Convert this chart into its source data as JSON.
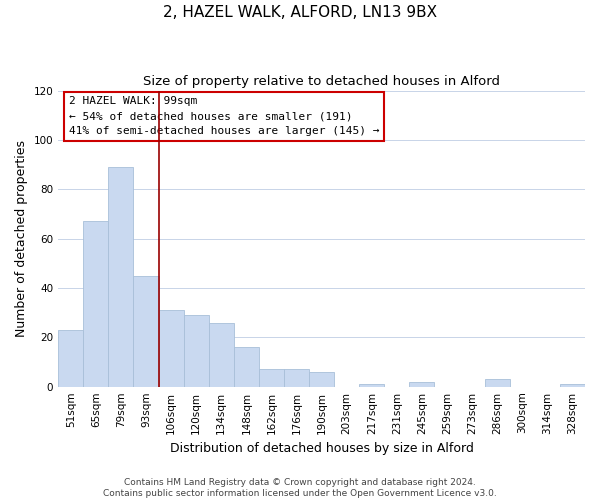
{
  "title": "2, HAZEL WALK, ALFORD, LN13 9BX",
  "subtitle": "Size of property relative to detached houses in Alford",
  "xlabel": "Distribution of detached houses by size in Alford",
  "ylabel": "Number of detached properties",
  "categories": [
    "51sqm",
    "65sqm",
    "79sqm",
    "93sqm",
    "106sqm",
    "120sqm",
    "134sqm",
    "148sqm",
    "162sqm",
    "176sqm",
    "190sqm",
    "203sqm",
    "217sqm",
    "231sqm",
    "245sqm",
    "259sqm",
    "273sqm",
    "286sqm",
    "300sqm",
    "314sqm",
    "328sqm"
  ],
  "values": [
    23,
    67,
    89,
    45,
    31,
    29,
    26,
    16,
    7,
    7,
    6,
    0,
    1,
    0,
    2,
    0,
    0,
    3,
    0,
    0,
    1
  ],
  "bar_color": "#c9d9f0",
  "bar_edge_color": "#a8bfd8",
  "red_line_index": 4,
  "annotation_text": "2 HAZEL WALK: 99sqm\n← 54% of detached houses are smaller (191)\n41% of semi-detached houses are larger (145) →",
  "annotation_box_color": "#ffffff",
  "annotation_box_edge": "#cc0000",
  "ylim": [
    0,
    120
  ],
  "yticks": [
    0,
    20,
    40,
    60,
    80,
    100,
    120
  ],
  "grid_color": "#c8d4e8",
  "background_color": "#ffffff",
  "footer1": "Contains HM Land Registry data © Crown copyright and database right 2024.",
  "footer2": "Contains public sector information licensed under the Open Government Licence v3.0.",
  "title_fontsize": 11,
  "subtitle_fontsize": 9.5,
  "axis_label_fontsize": 9,
  "tick_fontsize": 7.5,
  "annotation_fontsize": 8,
  "footer_fontsize": 6.5
}
